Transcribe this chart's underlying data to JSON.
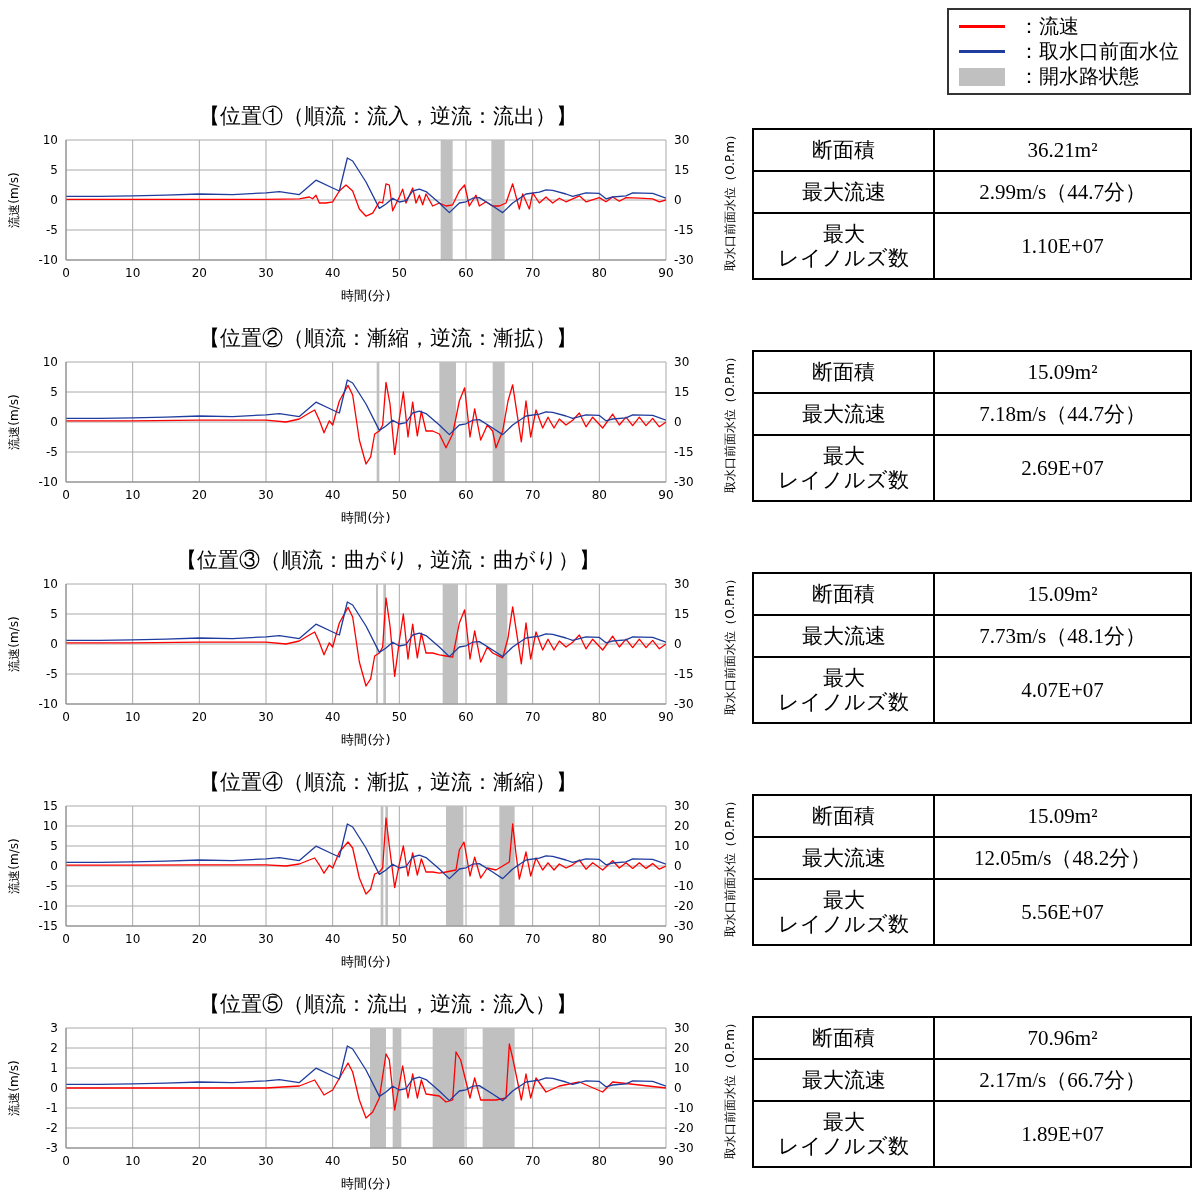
{
  "chart_data": [
    {
      "type": "line",
      "title": "【位置①（順流：流入，逆流：流出）】",
      "xlabel": "時間(分)",
      "ylabel": "流速(m/s)",
      "y2label": "取水口前面水位（O.P.m）",
      "xlim": [
        0,
        90
      ],
      "xticks": [
        0,
        10,
        20,
        30,
        40,
        50,
        60,
        70,
        80,
        90
      ],
      "ylim": [
        -10,
        10
      ],
      "yticks": [
        -10,
        -5,
        0,
        5,
        10
      ],
      "y2lim": [
        -30,
        30
      ],
      "y2ticks": [
        -30,
        -15,
        0,
        15,
        30
      ],
      "grid": true,
      "legend": "top right",
      "series": [
        {
          "name": "：流速",
          "color": "#ff0000",
          "x": [
            0,
            10,
            20,
            30,
            35,
            36.5,
            37,
            37.5,
            38,
            39,
            40,
            41,
            42,
            43,
            44,
            45,
            46,
            47,
            47.5,
            48,
            48.5,
            49,
            50,
            50.5,
            51,
            52,
            52.5,
            53,
            53.5,
            54,
            55,
            56,
            57,
            58,
            59,
            59.8,
            60.5,
            61.5,
            62,
            63,
            64,
            65,
            66,
            67,
            68,
            68.5,
            69.5,
            70,
            71,
            72,
            73,
            74,
            75,
            77,
            78,
            80,
            81,
            82,
            83,
            84,
            86,
            88,
            89,
            90
          ],
          "values": [
            0.1,
            0.1,
            0.1,
            0.1,
            0.2,
            0.5,
            0.2,
            0.8,
            -0.5,
            -0.5,
            -0.3,
            1.5,
            2.5,
            1.5,
            -1.5,
            -2.7,
            -2.2,
            -0.3,
            -0.5,
            2.7,
            2.5,
            -1.8,
            0.5,
            1.8,
            -0.5,
            2,
            -0.5,
            0.8,
            -0.8,
            1,
            -1,
            -0.5,
            -1,
            -0.8,
            1.5,
            2.5,
            -1,
            0.8,
            -1,
            -0.3,
            -1,
            -1,
            -0.5,
            2.7,
            -1.5,
            1,
            -1.5,
            1.2,
            -0.5,
            0.5,
            -0.5,
            0.3,
            -0.3,
            0.7,
            -0.3,
            0.4,
            -0.3,
            0.5,
            -0.2,
            0.4,
            0.3,
            0.2,
            -0.3,
            0
          ]
        },
        {
          "name": "：取水口前面水位",
          "color": "#1f3c9e",
          "axis": "y2",
          "x": [
            0,
            5,
            10,
            15,
            20,
            25,
            30,
            32,
            35,
            37.5,
            40,
            41,
            42.2,
            43,
            45,
            47,
            48,
            49,
            50,
            51,
            52,
            53,
            54,
            56,
            57.5,
            59,
            60,
            61,
            62,
            64,
            65.5,
            67,
            69,
            71,
            72,
            73,
            75,
            76,
            78,
            80,
            81,
            82,
            84,
            85,
            88,
            90
          ],
          "values": [
            1.8,
            1.8,
            2.1,
            2.4,
            3,
            2.7,
            3.6,
            4.2,
            2.7,
            9.9,
            6,
            4.5,
            21,
            19.5,
            9,
            -4.2,
            -2,
            0.9,
            -1,
            -0.3,
            4.5,
            5.4,
            4.2,
            -1.5,
            -6.3,
            -1.5,
            -0.9,
            0.9,
            1.2,
            -3,
            -6.3,
            -1.5,
            3,
            3.9,
            5.1,
            4.8,
            3,
            1.8,
            3.6,
            3.3,
            0.6,
            1.5,
            2.1,
            3.6,
            3.3,
            0.9
          ]
        }
      ],
      "bands": [
        {
          "axis": "x",
          "from": 56.2,
          "to": 58,
          "label": "：開水路状態",
          "color": "#c0c0c0"
        },
        {
          "axis": "x",
          "from": 63.8,
          "to": 65.8,
          "color": "#c0c0c0"
        }
      ]
    },
    {
      "type": "other",
      "annotations": [
        "断面積",
        "36.21m²",
        "最大流速",
        "2.99m/s（44.7分）",
        "最大",
        "レイノルズ数",
        "1.10E+07"
      ]
    },
    {
      "type": "line",
      "title": "【位置②（順流：漸縮，逆流：漸拡）】",
      "xlabel": "時間(分)",
      "ylabel": "流速(m/s)",
      "y2label": "取水口前面水位（O.P.m）",
      "xlim": [
        0,
        90
      ],
      "xticks": [
        0,
        10,
        20,
        30,
        40,
        50,
        60,
        70,
        80,
        90
      ],
      "ylim": [
        -10,
        10
      ],
      "yticks": [
        -10,
        -5,
        0,
        5,
        10
      ],
      "y2lim": [
        -30,
        30
      ],
      "y2ticks": [
        -30,
        -15,
        0,
        15,
        30
      ],
      "grid": true,
      "series": [
        {
          "color": "#ff0000",
          "x": [
            0,
            10,
            20,
            30,
            33,
            35,
            36.5,
            37.3,
            38,
            38.7,
            39.5,
            40,
            41,
            42.3,
            43,
            44,
            45,
            45.7,
            46.3,
            47,
            47.5,
            48,
            48.6,
            49.3,
            50,
            50.6,
            51.3,
            52,
            52.7,
            53.3,
            54,
            55,
            56,
            57,
            58,
            59,
            59.8,
            60.6,
            61.3,
            62.2,
            63.2,
            64,
            64.5,
            65.5,
            66.3,
            67,
            68.3,
            69,
            69.7,
            70.5,
            71.5,
            72.3,
            73.2,
            74,
            75,
            76,
            77,
            78,
            79,
            80.5,
            82,
            83,
            84,
            85,
            86,
            87,
            88,
            89,
            90
          ],
          "values": [
            0.2,
            0.2,
            0.3,
            0.3,
            0,
            0.5,
            1.5,
            2,
            0.3,
            -1.8,
            0.2,
            -0.5,
            3.5,
            6.1,
            4.5,
            -3,
            -7,
            -5.8,
            -2,
            -1.5,
            -0.5,
            6.6,
            3,
            -5.4,
            0.5,
            5,
            -2.5,
            3.3,
            -2.3,
            1.8,
            -1.5,
            -1.5,
            -2,
            -4.3,
            -2,
            3.5,
            5.7,
            -2.5,
            2.2,
            -3,
            -0.5,
            -1.5,
            -4.3,
            -1.5,
            3.5,
            6.2,
            -3.3,
            3.5,
            -2.5,
            2,
            -1,
            0.8,
            -1,
            0.5,
            -0.5,
            0.3,
            1.5,
            -0.8,
            0.8,
            -1,
            1.3,
            -0.5,
            0.8,
            -0.6,
            0.8,
            -0.6,
            0.6,
            -0.8,
            0
          ]
        },
        {
          "color": "#1f3c9e",
          "axis": "y2",
          "x": [
            0,
            5,
            10,
            15,
            20,
            25,
            30,
            32,
            35,
            37.5,
            40,
            41,
            42.2,
            43,
            45,
            47,
            48,
            49,
            50,
            51,
            52,
            53,
            54,
            56,
            57.5,
            59,
            60,
            61,
            62,
            64,
            65.5,
            67,
            69,
            71,
            72,
            73,
            75,
            76,
            78,
            80,
            81,
            82,
            84,
            85,
            88,
            90
          ],
          "values": [
            1.8,
            1.8,
            2.1,
            2.4,
            3,
            2.7,
            3.6,
            4.2,
            2.7,
            9.9,
            6,
            4.5,
            21,
            19.5,
            9,
            -4.2,
            -2,
            0.9,
            -1,
            -0.3,
            4.5,
            5.4,
            4.2,
            -1.5,
            -6.3,
            -1.5,
            -0.9,
            0.9,
            1.2,
            -3,
            -6.3,
            -1.5,
            3,
            3.9,
            5.1,
            4.8,
            3,
            1.8,
            3.6,
            3.3,
            0.6,
            1.5,
            2.1,
            3.6,
            3.3,
            0.9
          ]
        }
      ],
      "bands": [
        {
          "axis": "x",
          "from": 46.6,
          "to": 47,
          "color": "#c0c0c0"
        },
        {
          "axis": "x",
          "from": 56,
          "to": 58.5,
          "color": "#c0c0c0"
        },
        {
          "axis": "x",
          "from": 64,
          "to": 65.8,
          "color": "#c0c0c0"
        }
      ]
    },
    {
      "type": "other",
      "annotations": [
        "断面積",
        "15.09m²",
        "最大流速",
        "7.18m/s（44.7分）",
        "最大",
        "レイノルズ数",
        "2.69E+07"
      ]
    },
    {
      "type": "line",
      "title": "【位置③（順流：曲がり，逆流：曲がり）】",
      "xlabel": "時間(分)",
      "ylabel": "流速(m/s)",
      "y2label": "取水口前面水位（O.P.m）",
      "xlim": [
        0,
        90
      ],
      "xticks": [
        0,
        10,
        20,
        30,
        40,
        50,
        60,
        70,
        80,
        90
      ],
      "ylim": [
        -10,
        10
      ],
      "yticks": [
        -10,
        -5,
        0,
        5,
        10
      ],
      "y2lim": [
        -30,
        30
      ],
      "y2ticks": [
        -30,
        -15,
        0,
        15,
        30
      ],
      "grid": true,
      "series": [
        {
          "color": "#ff0000",
          "x": [
            0,
            10,
            20,
            30,
            33,
            35,
            36.5,
            37.3,
            38,
            38.7,
            39.5,
            40,
            41,
            42.3,
            43,
            44,
            45,
            45.7,
            46.3,
            47,
            47.5,
            48,
            48.6,
            49.3,
            50,
            50.6,
            51.3,
            52,
            52.7,
            53.3,
            54,
            55,
            56,
            57,
            58,
            59,
            59.8,
            60.6,
            61.3,
            62.2,
            63.2,
            64,
            65.5,
            66.3,
            67,
            68.3,
            69,
            69.7,
            70.5,
            71.5,
            72.3,
            73.2,
            74,
            75,
            76,
            77,
            78,
            79,
            80.5,
            82,
            83,
            84,
            85,
            86,
            87,
            88,
            89,
            90
          ],
          "values": [
            0.2,
            0.2,
            0.3,
            0.3,
            0,
            0.5,
            1.5,
            2,
            0.3,
            -1.8,
            0.2,
            -0.5,
            3.5,
            6.1,
            4.5,
            -3,
            -7,
            -5.8,
            -2,
            -1.5,
            -0.5,
            7.7,
            3,
            -5.4,
            0.5,
            5,
            -2.5,
            3.3,
            -2.3,
            1.8,
            -1.5,
            -1.5,
            -1.8,
            -2,
            -2.2,
            3.5,
            5.7,
            -2.5,
            2.2,
            -3,
            -0.5,
            -1.5,
            -2.3,
            1,
            6.2,
            -3.3,
            3.5,
            -2.5,
            2,
            -1,
            0.8,
            -1,
            0.5,
            -0.5,
            0.3,
            1.5,
            -0.8,
            0.8,
            -1,
            1.3,
            -0.5,
            0.8,
            -0.6,
            0.8,
            -0.6,
            0.6,
            -0.8,
            0
          ]
        },
        {
          "color": "#1f3c9e",
          "axis": "y2",
          "x": [
            0,
            5,
            10,
            15,
            20,
            25,
            30,
            32,
            35,
            37.5,
            40,
            41,
            42.2,
            43,
            45,
            47,
            48,
            49,
            50,
            51,
            52,
            53,
            54,
            56,
            57.5,
            59,
            60,
            61,
            62,
            64,
            65.5,
            67,
            69,
            71,
            72,
            73,
            75,
            76,
            78,
            80,
            81,
            82,
            84,
            85,
            88,
            90
          ],
          "values": [
            1.8,
            1.8,
            2.1,
            2.4,
            3,
            2.7,
            3.6,
            4.2,
            2.7,
            9.9,
            6,
            4.5,
            21,
            19.5,
            9,
            -4.2,
            -2,
            0.9,
            -1,
            -0.3,
            4.5,
            5.4,
            4.2,
            -1.5,
            -6.3,
            -1.5,
            -0.9,
            0.9,
            1.2,
            -3,
            -6.3,
            -1.5,
            3,
            3.9,
            5.1,
            4.8,
            3,
            1.8,
            3.6,
            3.3,
            0.6,
            1.5,
            2.1,
            3.6,
            3.3,
            0.9
          ]
        }
      ],
      "bands": [
        {
          "axis": "x",
          "from": 46.5,
          "to": 46.8,
          "color": "#c0c0c0"
        },
        {
          "axis": "x",
          "from": 47.6,
          "to": 48,
          "color": "#c0c0c0"
        },
        {
          "axis": "x",
          "from": 56.5,
          "to": 58.8,
          "color": "#c0c0c0"
        },
        {
          "axis": "x",
          "from": 64.5,
          "to": 66.2,
          "color": "#c0c0c0"
        }
      ]
    },
    {
      "type": "other",
      "annotations": [
        "断面積",
        "15.09m²",
        "最大流速",
        "7.73m/s（48.1分）",
        "最大",
        "レイノルズ数",
        "4.07E+07"
      ]
    },
    {
      "type": "line",
      "title": "【位置④（順流：漸拡，逆流：漸縮）】",
      "xlabel": "時間(分)",
      "ylabel": "流速(m/s)",
      "y2label": "取水口前面水位（O.P.m）",
      "xlim": [
        0,
        90
      ],
      "xticks": [
        0,
        10,
        20,
        30,
        40,
        50,
        60,
        70,
        80,
        90
      ],
      "ylim": [
        -15,
        15
      ],
      "yticks": [
        -15,
        -10,
        -5,
        0,
        5,
        10,
        15
      ],
      "y2lim": [
        -30,
        30
      ],
      "y2ticks": [
        -30,
        -20,
        -10,
        0,
        10,
        20,
        30
      ],
      "grid": true,
      "series": [
        {
          "color": "#ff0000",
          "x": [
            0,
            10,
            20,
            30,
            33,
            35,
            36.5,
            37.3,
            38,
            38.7,
            39.5,
            40,
            41,
            42.3,
            43,
            44,
            45,
            45.7,
            46.3,
            47,
            47.5,
            48,
            48.5,
            49.3,
            50,
            50.6,
            51.3,
            52,
            52.7,
            53.3,
            54,
            55,
            56,
            57,
            58.5,
            59,
            59.7,
            60.6,
            61.3,
            62.2,
            63.2,
            64.5,
            66.5,
            67,
            67.5,
            68,
            69,
            69.7,
            70.5,
            71.5,
            72.3,
            73.2,
            74,
            75,
            76,
            77,
            78,
            79,
            80.5,
            82,
            83,
            84,
            85,
            86,
            87,
            88,
            89,
            90
          ],
          "values": [
            0.2,
            0.2,
            0.3,
            0.3,
            0,
            0.5,
            1.5,
            2,
            0.3,
            -1.8,
            0.2,
            -0.5,
            3.5,
            6,
            4.5,
            -3,
            -7,
            -5.8,
            -2,
            -1.5,
            -0.5,
            12,
            5,
            -5.4,
            0.5,
            5,
            -2.5,
            3.3,
            -2.3,
            1.8,
            -1.5,
            -1.5,
            -1.8,
            -1.5,
            -1,
            4,
            6,
            -2.5,
            2.2,
            -3,
            -0.5,
            -1,
            1,
            10.5,
            3,
            -3.3,
            3.5,
            -2.5,
            2,
            -1,
            0.8,
            -1,
            0.5,
            -0.5,
            0.3,
            1.5,
            -0.8,
            0.8,
            -1,
            1.3,
            -0.5,
            0.8,
            -0.6,
            0.8,
            -0.6,
            0.6,
            -0.8,
            0
          ]
        },
        {
          "color": "#1f3c9e",
          "axis": "y2",
          "x": [
            0,
            5,
            10,
            15,
            20,
            25,
            30,
            32,
            35,
            37.5,
            40,
            41,
            42.2,
            43,
            45,
            47,
            48,
            49,
            50,
            51,
            52,
            53,
            54,
            56,
            57.5,
            59,
            60,
            61,
            62,
            64,
            65.5,
            67,
            69,
            71,
            72,
            73,
            75,
            76,
            78,
            80,
            81,
            82,
            84,
            85,
            88,
            90
          ],
          "values": [
            1.8,
            1.8,
            2.1,
            2.4,
            3,
            2.7,
            3.6,
            4.2,
            2.7,
            9.9,
            6,
            4.5,
            21,
            19.5,
            9,
            -4.2,
            -2,
            0.9,
            -1,
            -0.3,
            4.5,
            5.4,
            4.2,
            -1.5,
            -6.3,
            -1.5,
            -0.9,
            0.9,
            1.2,
            -3,
            -6.3,
            -1.5,
            3,
            3.9,
            5.1,
            4.8,
            3,
            1.8,
            3.6,
            3.3,
            0.6,
            1.5,
            2.1,
            3.6,
            3.3,
            0.9
          ]
        }
      ],
      "bands": [
        {
          "axis": "x",
          "from": 47.2,
          "to": 47.6,
          "color": "#c0c0c0"
        },
        {
          "axis": "x",
          "from": 47.9,
          "to": 48.3,
          "color": "#c0c0c0"
        },
        {
          "axis": "x",
          "from": 57,
          "to": 59.6,
          "color": "#c0c0c0"
        },
        {
          "axis": "x",
          "from": 65,
          "to": 67.3,
          "color": "#c0c0c0"
        }
      ]
    },
    {
      "type": "other",
      "annotations": [
        "断面積",
        "15.09m²",
        "最大流速",
        "12.05m/s（48.2分）",
        "最大",
        "レイノルズ数",
        "5.56E+07"
      ]
    },
    {
      "type": "line",
      "title": "【位置⑤（順流：流出，逆流：流入）】",
      "xlabel": "時間(分)",
      "ylabel": "流速(m/s)",
      "y2label": "取水口前面水位（O.P.m）",
      "xlim": [
        0,
        90
      ],
      "xticks": [
        0,
        10,
        20,
        30,
        40,
        50,
        60,
        70,
        80,
        90
      ],
      "ylim": [
        -3,
        3
      ],
      "yticks": [
        -3,
        -2,
        -1,
        0,
        1,
        2,
        3
      ],
      "y2lim": [
        -30,
        30
      ],
      "y2ticks": [
        -30,
        -20,
        -10,
        0,
        10,
        20,
        30
      ],
      "grid": true,
      "series": [
        {
          "color": "#ff0000",
          "x": [
            0,
            10,
            20,
            30,
            35,
            37.3,
            38.7,
            40,
            42.3,
            43,
            44,
            45,
            46,
            47,
            48,
            48.5,
            49.3,
            50.5,
            51.3,
            52,
            52.7,
            53.3,
            54,
            56,
            57,
            58,
            58.5,
            59.2,
            60.6,
            61.3,
            62.2,
            64.5,
            66,
            66.5,
            67,
            68.3,
            69,
            69.7,
            70.5,
            72,
            74,
            77,
            80.5,
            82,
            90
          ],
          "values": [
            0,
            0,
            0,
            0,
            0.1,
            0.4,
            -0.35,
            -0.1,
            1.25,
            0.8,
            -0.6,
            -1.5,
            -1.2,
            -0.5,
            1.7,
            1.4,
            -1.1,
            1.1,
            -0.5,
            0.7,
            -0.5,
            0.4,
            -0.3,
            -0.4,
            -0.7,
            -0.6,
            1.8,
            1.4,
            -0.5,
            0.5,
            -0.6,
            -0.6,
            -0.5,
            2.2,
            1.5,
            -0.6,
            0.7,
            -0.5,
            0.5,
            -0.2,
            0.1,
            0.3,
            -0.2,
            0.3,
            0
          ]
        },
        {
          "color": "#1f3c9e",
          "axis": "y2",
          "x": [
            0,
            5,
            10,
            15,
            20,
            25,
            30,
            32,
            35,
            37.5,
            40,
            41,
            42.2,
            43,
            45,
            47,
            48,
            49,
            50,
            51,
            52,
            53,
            54,
            56,
            57.5,
            59,
            60,
            61,
            62,
            64,
            65.5,
            67,
            69,
            71,
            72,
            73,
            75,
            76,
            78,
            80,
            81,
            82,
            84,
            85,
            88,
            90
          ],
          "values": [
            1.8,
            1.8,
            2.1,
            2.4,
            3,
            2.7,
            3.6,
            4.2,
            2.7,
            9.9,
            6,
            4.5,
            21,
            19.5,
            9,
            -4.2,
            -2,
            0.9,
            -1,
            -0.3,
            4.5,
            5.4,
            4.2,
            -1.5,
            -6.3,
            -1.5,
            -0.9,
            0.9,
            1.2,
            -3,
            -6.3,
            -1.5,
            3,
            3.9,
            5.1,
            4.8,
            3,
            1.8,
            3.6,
            3.3,
            0.6,
            1.5,
            2.1,
            3.6,
            3.3,
            0.9
          ]
        }
      ],
      "bands": [
        {
          "axis": "x",
          "from": 45.6,
          "to": 48,
          "color": "#c0c0c0"
        },
        {
          "axis": "x",
          "from": 49,
          "to": 50.3,
          "color": "#c0c0c0"
        },
        {
          "axis": "x",
          "from": 55,
          "to": 59.8,
          "color": "#c0c0c0"
        },
        {
          "axis": "x",
          "from": 62.5,
          "to": 67.3,
          "color": "#c0c0c0"
        }
      ]
    },
    {
      "type": "other",
      "annotations": [
        "断面積",
        "70.96m²",
        "最大流速",
        "2.17m/s（66.7分）",
        "最大",
        "レイノルズ数",
        "1.89E+07"
      ]
    }
  ]
}
